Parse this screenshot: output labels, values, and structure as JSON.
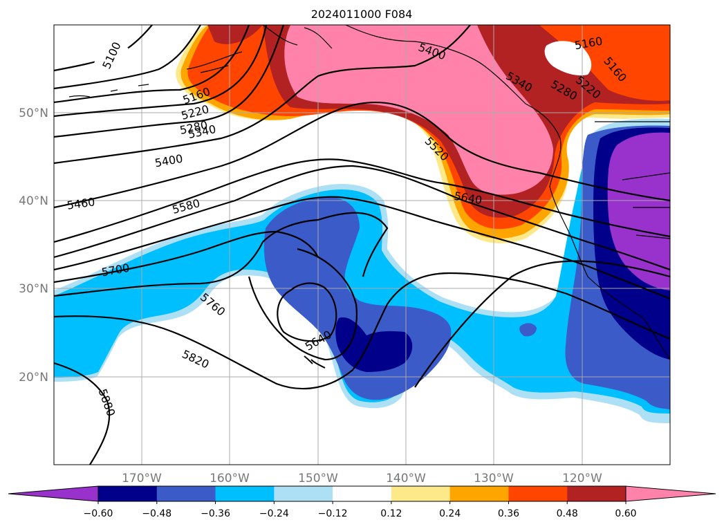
{
  "title": "2024011000 F084",
  "lat_labels": [
    "50°N",
    "40°N",
    "30°N",
    "20°N"
  ],
  "lon_labels": [
    "170°W",
    "160°W",
    "150°W",
    "140°W",
    "130°W",
    "120°W"
  ],
  "contour_labels": [
    {
      "text": "5100"
    },
    {
      "text": "5160"
    },
    {
      "text": "5220"
    },
    {
      "text": "5280"
    },
    {
      "text": "5340"
    },
    {
      "text": "5400"
    },
    {
      "text": "5460"
    },
    {
      "text": "5580"
    },
    {
      "text": "5700"
    },
    {
      "text": "5760"
    },
    {
      "text": "5820"
    },
    {
      "text": "5880"
    },
    {
      "text": "5640"
    },
    {
      "text": "5400"
    },
    {
      "text": "5340"
    },
    {
      "text": "5280"
    },
    {
      "text": "5220"
    },
    {
      "text": "5160"
    },
    {
      "text": "5160"
    },
    {
      "text": "5520"
    },
    {
      "text": "5640"
    }
  ],
  "colorbar": {
    "colors": [
      "#9932CC",
      "#00008B",
      "#3A5BC8",
      "#00BFFF",
      "#ADE0F5",
      "#FFFFFF",
      "#FDE98A",
      "#FFA500",
      "#FF4500",
      "#B22222",
      "#FF82AB"
    ],
    "tick_labels": [
      "−0.60",
      "−0.48",
      "−0.36",
      "−0.24",
      "−0.12",
      "0.12",
      "0.24",
      "0.36",
      "0.48",
      "0.60"
    ]
  }
}
